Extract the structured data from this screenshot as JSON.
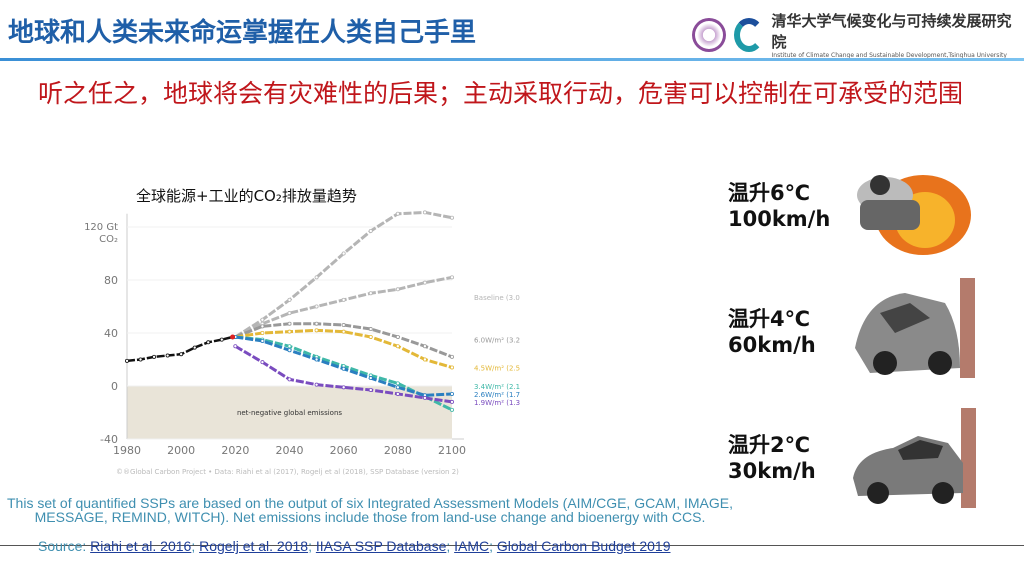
{
  "header": {
    "title": "地球和人类未来命运掌握在人类自己手里",
    "org_cn": "清华大学气候变化与可持续发展研究院",
    "org_en": "Institute of Climate Change and Sustainable Development,Tsinghua University"
  },
  "subtitle": "听之任之，地球将会有灾难性的后果；主动采取行动，危害可以控制在可承受的范围",
  "chart_title": "全球能源+工业的CO₂排放量趋势",
  "chart_data": {
    "type": "line",
    "title": "全球能源+工业的CO₂排放量趋势",
    "ylabel": "120 Gt CO₂",
    "xlim": [
      1980,
      2100
    ],
    "ylim": [
      -40,
      130
    ],
    "xticks": [
      "1980",
      "2000",
      "2020",
      "2040",
      "2060",
      "2080",
      "2100"
    ],
    "yticks": [
      "120 Gt CO₂",
      "80",
      "40",
      "0",
      "-40"
    ],
    "annotation": "net-negative global emissions",
    "credit": "©®Global Carbon Project  •  Data: Riahi et al (2017), Rogelj et al (2018), SSP Database (version 2)",
    "historical": {
      "x": [
        1980,
        1985,
        1990,
        1995,
        2000,
        2005,
        2010,
        2015,
        2019
      ],
      "y": [
        19,
        20,
        22,
        23,
        24,
        29,
        33,
        35,
        37
      ],
      "color": "#111111"
    },
    "scenario_x": [
      2020,
      2030,
      2040,
      2050,
      2060,
      2070,
      2080,
      2090,
      2100
    ],
    "series": [
      {
        "name": "Baseline (3.0–5.1°C)",
        "y": [
          37,
          50,
          65,
          82,
          100,
          117,
          130,
          131,
          127
        ],
        "color": "#b5b5b5"
      },
      {
        "name": "",
        "y": [
          37,
          47,
          55,
          60,
          65,
          70,
          73,
          78,
          82
        ],
        "color": "#b5b5b5"
      },
      {
        "name": "6.0W/m² (3.2–3.3°C)",
        "y": [
          37,
          45,
          47,
          47,
          46,
          43,
          37,
          30,
          22
        ],
        "color": "#999999"
      },
      {
        "name": "4.5W/m² (2.5–2.7°C)",
        "y": [
          37,
          40,
          41,
          42,
          41,
          37,
          30,
          20,
          14
        ],
        "color": "#e3b838"
      },
      {
        "name": "3.4W/m² (2.1–2.3°C)",
        "y": [
          37,
          35,
          30,
          22,
          15,
          8,
          2,
          -8,
          -18
        ],
        "color": "#3fb8a8"
      },
      {
        "name": "2.6W/m² (1.7–1.8°C)",
        "y": [
          37,
          34,
          27,
          20,
          13,
          6,
          -1,
          -7,
          -6
        ],
        "color": "#2a7fc0"
      },
      {
        "name": "1.9W/m² (1.3–1.4°C)",
        "y": [
          30,
          18,
          5,
          1,
          -1,
          -3,
          -6,
          -9,
          -12
        ],
        "color": "#7a4cbf"
      }
    ]
  },
  "cars": [
    {
      "label1": "温升6℃",
      "label2": "100km/h"
    },
    {
      "label1": "温升4℃",
      "label2": "60km/h"
    },
    {
      "label1": "温升2℃",
      "label2": "30km/h"
    }
  ],
  "footnote": "This set of quantified SSPs are based on the output of six Integrated Assessment Models (AIM/CGE, GCAM, IMAGE, MESSAGE, REMIND, WITCH). Net emissions include those from land-use change and bioenergy with CCS.",
  "source": {
    "prefix": "Source: ",
    "links": [
      "Riahi et al. 2016",
      "Rogelj et al. 2018",
      "IIASA SSP Database",
      "IAMC",
      "Global Carbon Budget 2019"
    ]
  }
}
